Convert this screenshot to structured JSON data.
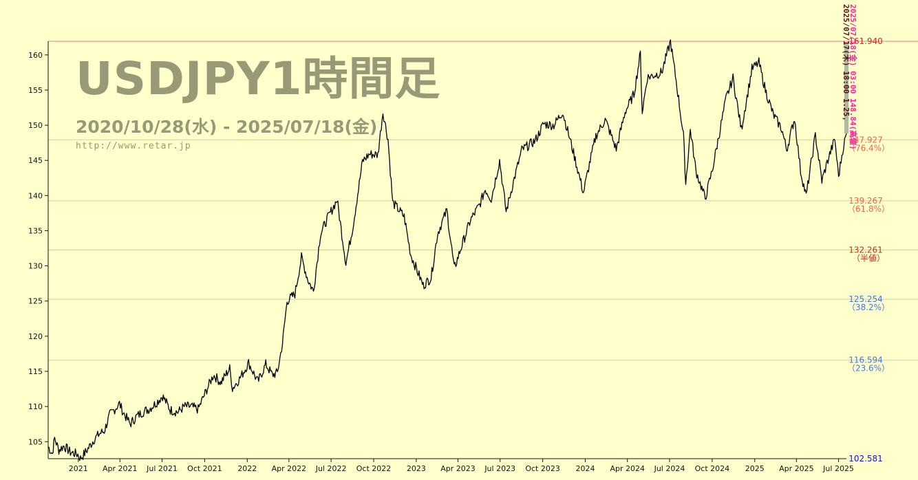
{
  "header": {
    "title": "USDJPY1時間足",
    "date_range": "2020/10/28(水) - 2025/07/18(金)",
    "url": "http://www.retar.jp"
  },
  "colors": {
    "background": "#ffffcc",
    "price_line": "#000000",
    "high_level": "#dd2222",
    "upper_fib": "#ee6644",
    "mid_fib": "#bb3322",
    "lower_fib": "#4477dd",
    "low_level": "#1111dd",
    "grid": "#dddddd",
    "vertical_label_a": "#551111",
    "vertical_label_b": "#ff2299"
  },
  "vertical_labels": {
    "a": "2025/07/17(木) 18:00 1.25,",
    "b": "2025/07/18(金) 03:00 148.84(高値)"
  },
  "chart_data": {
    "type": "line",
    "title": "USDJPY1時間足",
    "xlabel": "",
    "ylabel": "",
    "ylim": [
      102.581,
      161.94
    ],
    "xlim": [
      "2020-10-28",
      "2025-07-18"
    ],
    "grid": true,
    "y_ticks": [
      105,
      110,
      115,
      120,
      125,
      130,
      135,
      140,
      145,
      150,
      155,
      160
    ],
    "x_ticks": [
      {
        "label": "2021",
        "date": "2021-01-01"
      },
      {
        "label": "Apr 2021",
        "date": "2021-04-01"
      },
      {
        "label": "Jul 2021",
        "date": "2021-07-01"
      },
      {
        "label": "Oct 2021",
        "date": "2021-10-01"
      },
      {
        "label": "2022",
        "date": "2022-01-01"
      },
      {
        "label": "Apr 2022",
        "date": "2022-04-01"
      },
      {
        "label": "Jul 2022",
        "date": "2022-07-01"
      },
      {
        "label": "Oct 2022",
        "date": "2022-10-01"
      },
      {
        "label": "2023",
        "date": "2023-01-01"
      },
      {
        "label": "Apr 2023",
        "date": "2023-04-01"
      },
      {
        "label": "Jul 2023",
        "date": "2023-07-01"
      },
      {
        "label": "Oct 2023",
        "date": "2023-10-01"
      },
      {
        "label": "2024",
        "date": "2024-01-01"
      },
      {
        "label": "Apr 2024",
        "date": "2024-04-01"
      },
      {
        "label": "Jul 2024",
        "date": "2024-07-01"
      },
      {
        "label": "Oct 2024",
        "date": "2024-10-01"
      },
      {
        "label": "2025",
        "date": "2025-01-01"
      },
      {
        "label": "Apr 2025",
        "date": "2025-04-01"
      },
      {
        "label": "Jul 2025",
        "date": "2025-07-01"
      }
    ],
    "levels": [
      {
        "value": 161.94,
        "label": "161.940",
        "pct": "",
        "tone": "high"
      },
      {
        "value": 147.927,
        "label": "147.927",
        "pct": "（76.4%）",
        "tone": "upper"
      },
      {
        "value": 139.267,
        "label": "139.267",
        "pct": "（61.8%）",
        "tone": "upper"
      },
      {
        "value": 132.261,
        "label": "132.261",
        "pct": "（半値）",
        "tone": "mid"
      },
      {
        "value": 125.254,
        "label": "125.254",
        "pct": "（38.2%）",
        "tone": "lower"
      },
      {
        "value": 116.594,
        "label": "116.594",
        "pct": "（23.6%）",
        "tone": "lower"
      },
      {
        "value": 102.581,
        "label": "102.581",
        "pct": "",
        "tone": "low"
      }
    ],
    "series": [
      {
        "points": [
          [
            "2020-10-28",
            104.3
          ],
          [
            "2020-11-06",
            103.3
          ],
          [
            "2020-11-11",
            105.5
          ],
          [
            "2020-11-20",
            103.8
          ],
          [
            "2020-12-01",
            104.4
          ],
          [
            "2020-12-15",
            103.5
          ],
          [
            "2020-12-31",
            103.2
          ],
          [
            "2021-01-06",
            102.6
          ],
          [
            "2021-01-20",
            103.8
          ],
          [
            "2021-02-05",
            105.4
          ],
          [
            "2021-02-17",
            106.2
          ],
          [
            "2021-02-26",
            106.5
          ],
          [
            "2021-03-10",
            108.8
          ],
          [
            "2021-03-31",
            110.4
          ],
          [
            "2021-04-08",
            109.2
          ],
          [
            "2021-04-23",
            107.5
          ],
          [
            "2021-05-07",
            108.6
          ],
          [
            "2021-05-20",
            109.2
          ],
          [
            "2021-06-04",
            109.7
          ],
          [
            "2021-06-18",
            110.5
          ],
          [
            "2021-07-02",
            111.5
          ],
          [
            "2021-07-19",
            109.5
          ],
          [
            "2021-08-04",
            109.2
          ],
          [
            "2021-08-18",
            110.0
          ],
          [
            "2021-09-01",
            110.0
          ],
          [
            "2021-09-17",
            109.6
          ],
          [
            "2021-09-30",
            111.6
          ],
          [
            "2021-10-20",
            114.5
          ],
          [
            "2021-11-05",
            113.4
          ],
          [
            "2021-11-24",
            115.4
          ],
          [
            "2021-11-30",
            112.6
          ],
          [
            "2021-12-15",
            113.9
          ],
          [
            "2022-01-04",
            116.2
          ],
          [
            "2022-01-24",
            113.5
          ],
          [
            "2022-02-10",
            116.0
          ],
          [
            "2022-02-24",
            114.5
          ],
          [
            "2022-03-07",
            114.8
          ],
          [
            "2022-03-18",
            119.0
          ],
          [
            "2022-03-28",
            125.0
          ],
          [
            "2022-04-14",
            126.0
          ],
          [
            "2022-04-28",
            131.2
          ],
          [
            "2022-05-12",
            128.0
          ],
          [
            "2022-05-24",
            126.4
          ],
          [
            "2022-06-08",
            134.5
          ],
          [
            "2022-06-22",
            136.6
          ],
          [
            "2022-07-14",
            139.4
          ],
          [
            "2022-08-02",
            130.4
          ],
          [
            "2022-08-17",
            135.5
          ],
          [
            "2022-09-07",
            144.9
          ],
          [
            "2022-09-22",
            145.9
          ],
          [
            "2022-10-10",
            145.8
          ],
          [
            "2022-10-21",
            151.9
          ],
          [
            "2022-11-01",
            148.0
          ],
          [
            "2022-11-11",
            139.0
          ],
          [
            "2022-11-24",
            138.0
          ],
          [
            "2022-12-06",
            137.0
          ],
          [
            "2022-12-20",
            131.6
          ],
          [
            "2023-01-16",
            127.2
          ],
          [
            "2023-02-02",
            128.3
          ],
          [
            "2023-02-16",
            134.6
          ],
          [
            "2023-03-08",
            137.9
          ],
          [
            "2023-03-24",
            129.6
          ],
          [
            "2023-04-10",
            133.0
          ],
          [
            "2023-04-28",
            136.5
          ],
          [
            "2023-05-18",
            138.7
          ],
          [
            "2023-05-30",
            140.9
          ],
          [
            "2023-06-12",
            139.5
          ],
          [
            "2023-06-30",
            145.0
          ],
          [
            "2023-07-14",
            137.7
          ],
          [
            "2023-07-28",
            141.5
          ],
          [
            "2023-08-17",
            146.5
          ],
          [
            "2023-09-15",
            147.8
          ],
          [
            "2023-10-03",
            150.2
          ],
          [
            "2023-10-25",
            150.0
          ],
          [
            "2023-11-13",
            151.9
          ],
          [
            "2023-12-05",
            146.5
          ],
          [
            "2023-12-28",
            140.4
          ],
          [
            "2024-01-10",
            144.5
          ],
          [
            "2024-01-24",
            148.5
          ],
          [
            "2024-02-13",
            150.8
          ],
          [
            "2024-03-08",
            146.6
          ],
          [
            "2024-03-27",
            151.9
          ],
          [
            "2024-04-15",
            154.4
          ],
          [
            "2024-04-29",
            160.2
          ],
          [
            "2024-05-03",
            151.9
          ],
          [
            "2024-05-14",
            156.8
          ],
          [
            "2024-06-14",
            157.5
          ],
          [
            "2024-07-03",
            161.9
          ],
          [
            "2024-07-17",
            155.5
          ],
          [
            "2024-07-31",
            148.5
          ],
          [
            "2024-08-05",
            141.7
          ],
          [
            "2024-08-15",
            149.4
          ],
          [
            "2024-08-27",
            143.5
          ],
          [
            "2024-09-16",
            139.6
          ],
          [
            "2024-10-01",
            143.5
          ],
          [
            "2024-10-31",
            153.8
          ],
          [
            "2024-11-15",
            156.7
          ],
          [
            "2024-12-03",
            149.4
          ],
          [
            "2024-12-26",
            158.0
          ],
          [
            "2025-01-10",
            158.9
          ],
          [
            "2025-01-24",
            155.0
          ],
          [
            "2025-02-10",
            151.5
          ],
          [
            "2025-02-28",
            149.5
          ],
          [
            "2025-03-11",
            146.5
          ],
          [
            "2025-03-28",
            151.0
          ],
          [
            "2025-04-10",
            143.5
          ],
          [
            "2025-04-22",
            139.9
          ],
          [
            "2025-05-12",
            148.6
          ],
          [
            "2025-05-26",
            142.1
          ],
          [
            "2025-06-10",
            145.5
          ],
          [
            "2025-06-23",
            148.0
          ],
          [
            "2025-07-01",
            142.7
          ],
          [
            "2025-07-10",
            146.5
          ],
          [
            "2025-07-18",
            148.84
          ]
        ]
      }
    ]
  }
}
